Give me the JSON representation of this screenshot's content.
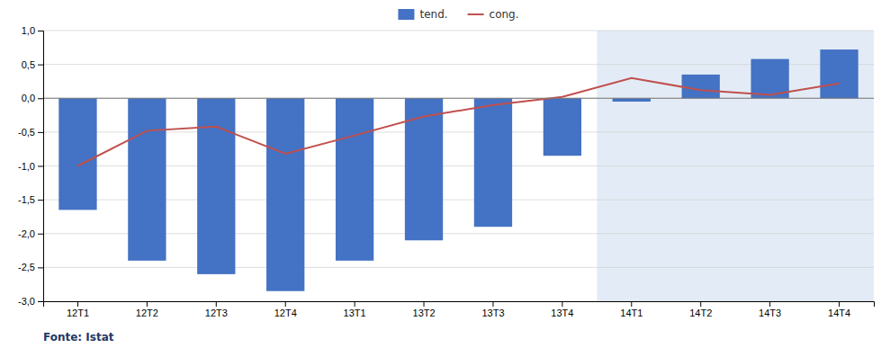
{
  "chart_data": {
    "type": "bar",
    "categories": [
      "12T1",
      "12T2",
      "12T3",
      "12T4",
      "13T1",
      "13T2",
      "13T3",
      "13T4",
      "14T1",
      "14T2",
      "14T3",
      "14T4"
    ],
    "series": [
      {
        "name": "tend.",
        "type": "bar",
        "color": "#4472C4",
        "values": [
          -1.65,
          -2.4,
          -2.6,
          -2.85,
          -2.4,
          -2.1,
          -1.9,
          -0.85,
          -0.05,
          0.35,
          0.58,
          0.72
        ]
      },
      {
        "name": "cong.",
        "type": "line",
        "color": "#C0504D",
        "values": [
          -1.0,
          -0.48,
          -0.42,
          -0.82,
          -0.55,
          -0.27,
          -0.1,
          0.02,
          0.3,
          0.12,
          0.05,
          0.22
        ]
      }
    ],
    "ylim": [
      -3.0,
      1.0
    ],
    "yticks": [
      {
        "value": -3.0,
        "label": "-3,0"
      },
      {
        "value": -2.5,
        "label": "-2,5"
      },
      {
        "value": -2.0,
        "label": "-2,0"
      },
      {
        "value": -1.5,
        "label": "-1,5"
      },
      {
        "value": -1.0,
        "label": "-1,0"
      },
      {
        "value": -0.5,
        "label": "-0,5"
      },
      {
        "value": 0.0,
        "label": "0,0"
      },
      {
        "value": 0.5,
        "label": "0,5"
      },
      {
        "value": 1.0,
        "label": "1,0"
      }
    ],
    "grid": true,
    "legend": "top",
    "shade_from": "14T1",
    "annotations": [
      "Fonte: Istat"
    ]
  }
}
